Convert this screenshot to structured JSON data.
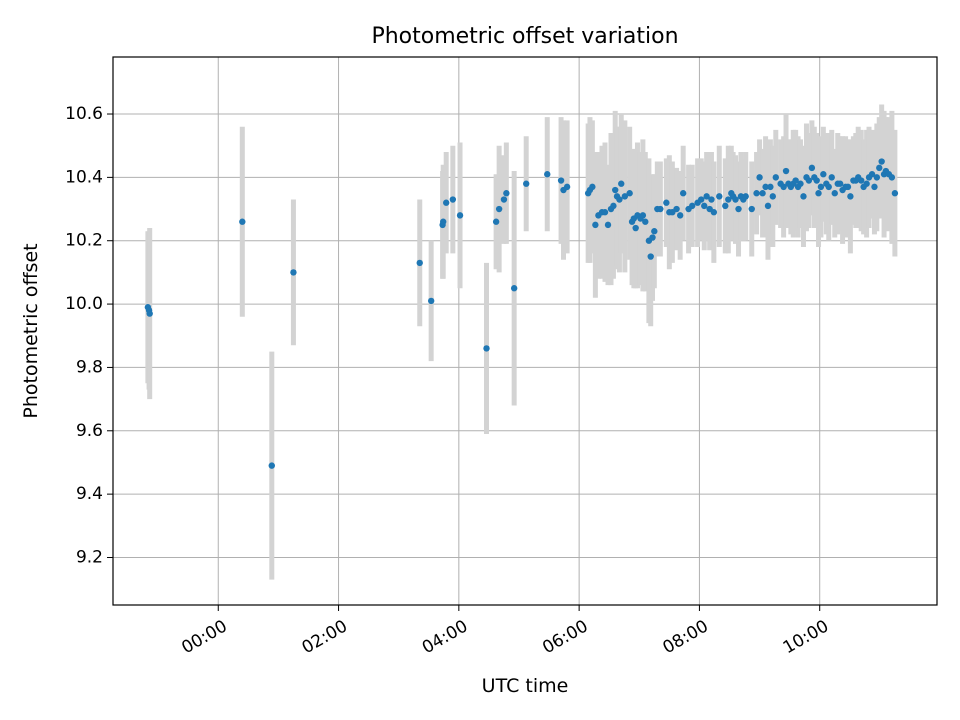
{
  "chart_data": {
    "type": "scatter",
    "title": "Photometric offset variation",
    "xlabel": "UTC time",
    "ylabel": "Photometric offset",
    "x_unit": "hours (UTC, relative to 00:00)",
    "xlim": [
      -1.75,
      11.95
    ],
    "ylim": [
      9.05,
      10.78
    ],
    "x_ticks": [
      0,
      2,
      4,
      6,
      8,
      10
    ],
    "x_tick_labels": [
      "00:00",
      "02:00",
      "04:00",
      "06:00",
      "08:00",
      "10:00"
    ],
    "y_ticks": [
      9.2,
      9.4,
      9.6,
      9.8,
      10.0,
      10.2,
      10.4,
      10.6
    ],
    "y_tick_labels": [
      "9.2",
      "9.4",
      "9.6",
      "9.8",
      "10.0",
      "10.2",
      "10.4",
      "10.6"
    ],
    "grid": true,
    "legend": "none",
    "colors": {
      "point": "#1f77b4",
      "errorbar": "#d3d3d3",
      "grid": "#b0b0b0",
      "axes": "#000000"
    },
    "series": [
      {
        "x": [
          -1.17,
          -1.15,
          -1.14,
          0.4,
          0.89,
          1.25,
          3.35,
          3.54,
          3.73,
          3.74,
          3.79,
          3.9,
          4.02,
          4.46,
          4.62,
          4.67,
          4.75,
          4.79,
          4.92,
          5.12,
          5.47,
          5.7,
          5.74,
          5.8,
          6.15,
          6.18,
          6.22,
          6.27,
          6.32,
          6.38,
          6.43,
          6.48,
          6.53,
          6.57,
          6.6,
          6.63,
          6.67,
          6.7,
          6.76,
          6.84,
          6.88,
          6.91,
          6.94,
          6.97,
          7.02,
          7.06,
          7.1,
          7.16,
          7.19,
          7.22,
          7.25,
          7.3,
          7.35,
          7.45,
          7.5,
          7.55,
          7.62,
          7.68,
          7.73,
          7.82,
          7.88,
          7.97,
          8.03,
          8.08,
          8.12,
          8.17,
          8.2,
          8.24,
          8.33,
          8.43,
          8.48,
          8.53,
          8.56,
          8.6,
          8.65,
          8.69,
          8.73,
          8.77,
          8.87,
          8.95,
          9.0,
          9.05,
          9.1,
          9.14,
          9.18,
          9.22,
          9.27,
          9.35,
          9.4,
          9.44,
          9.48,
          9.52,
          9.56,
          9.6,
          9.64,
          9.68,
          9.73,
          9.78,
          9.82,
          9.87,
          9.91,
          9.95,
          9.98,
          10.02,
          10.06,
          10.11,
          10.15,
          10.2,
          10.25,
          10.3,
          10.34,
          10.38,
          10.43,
          10.47,
          10.51,
          10.56,
          10.6,
          10.64,
          10.69,
          10.73,
          10.78,
          10.82,
          10.87,
          10.91,
          10.95,
          10.99,
          11.03,
          11.07,
          11.1,
          11.15,
          11.2,
          11.25
        ],
        "y": [
          9.99,
          9.98,
          9.97,
          10.26,
          9.49,
          10.1,
          10.13,
          10.01,
          10.25,
          10.26,
          10.32,
          10.33,
          10.28,
          9.86,
          10.26,
          10.3,
          10.33,
          10.35,
          10.05,
          10.38,
          10.41,
          10.39,
          10.36,
          10.37,
          10.35,
          10.36,
          10.37,
          10.25,
          10.28,
          10.29,
          10.29,
          10.25,
          10.3,
          10.31,
          10.36,
          10.34,
          10.33,
          10.38,
          10.34,
          10.35,
          10.26,
          10.27,
          10.24,
          10.28,
          10.27,
          10.28,
          10.26,
          10.2,
          10.15,
          10.21,
          10.23,
          10.3,
          10.3,
          10.32,
          10.29,
          10.29,
          10.3,
          10.28,
          10.35,
          10.3,
          10.31,
          10.32,
          10.33,
          10.31,
          10.34,
          10.3,
          10.33,
          10.29,
          10.34,
          10.31,
          10.33,
          10.35,
          10.34,
          10.33,
          10.3,
          10.34,
          10.33,
          10.34,
          10.3,
          10.35,
          10.4,
          10.35,
          10.37,
          10.31,
          10.37,
          10.34,
          10.4,
          10.38,
          10.37,
          10.42,
          10.38,
          10.37,
          10.38,
          10.39,
          10.37,
          10.38,
          10.34,
          10.4,
          10.39,
          10.43,
          10.4,
          10.39,
          10.35,
          10.37,
          10.41,
          10.38,
          10.37,
          10.4,
          10.35,
          10.38,
          10.38,
          10.36,
          10.37,
          10.37,
          10.34,
          10.39,
          10.39,
          10.4,
          10.39,
          10.37,
          10.38,
          10.4,
          10.41,
          10.37,
          10.4,
          10.43,
          10.45,
          10.41,
          10.42,
          10.41,
          10.4,
          10.35
        ],
        "error": [
          0.24,
          0.25,
          0.27,
          0.3,
          0.36,
          0.23,
          0.2,
          0.19,
          0.17,
          0.18,
          0.16,
          0.17,
          0.23,
          0.27,
          0.15,
          0.2,
          0.14,
          0.16,
          0.37,
          0.15,
          0.18,
          0.2,
          0.22,
          0.21,
          0.22,
          0.23,
          0.21,
          0.23,
          0.2,
          0.21,
          0.22,
          0.19,
          0.24,
          0.23,
          0.25,
          0.22,
          0.23,
          0.22,
          0.24,
          0.21,
          0.2,
          0.22,
          0.19,
          0.23,
          0.21,
          0.24,
          0.22,
          0.26,
          0.22,
          0.2,
          0.18,
          0.15,
          0.15,
          0.14,
          0.18,
          0.16,
          0.13,
          0.14,
          0.15,
          0.14,
          0.13,
          0.14,
          0.13,
          0.14,
          0.14,
          0.13,
          0.15,
          0.16,
          0.16,
          0.15,
          0.17,
          0.15,
          0.14,
          0.14,
          0.15,
          0.14,
          0.13,
          0.14,
          0.15,
          0.13,
          0.12,
          0.14,
          0.16,
          0.17,
          0.15,
          0.16,
          0.15,
          0.14,
          0.16,
          0.18,
          0.14,
          0.15,
          0.17,
          0.16,
          0.16,
          0.14,
          0.16,
          0.17,
          0.15,
          0.15,
          0.16,
          0.15,
          0.17,
          0.16,
          0.15,
          0.16,
          0.17,
          0.15,
          0.14,
          0.16,
          0.15,
          0.17,
          0.16,
          0.15,
          0.18,
          0.14,
          0.15,
          0.16,
          0.16,
          0.15,
          0.17,
          0.16,
          0.14,
          0.15,
          0.17,
          0.16,
          0.18,
          0.2,
          0.17,
          0.18,
          0.21,
          0.2
        ]
      }
    ]
  }
}
